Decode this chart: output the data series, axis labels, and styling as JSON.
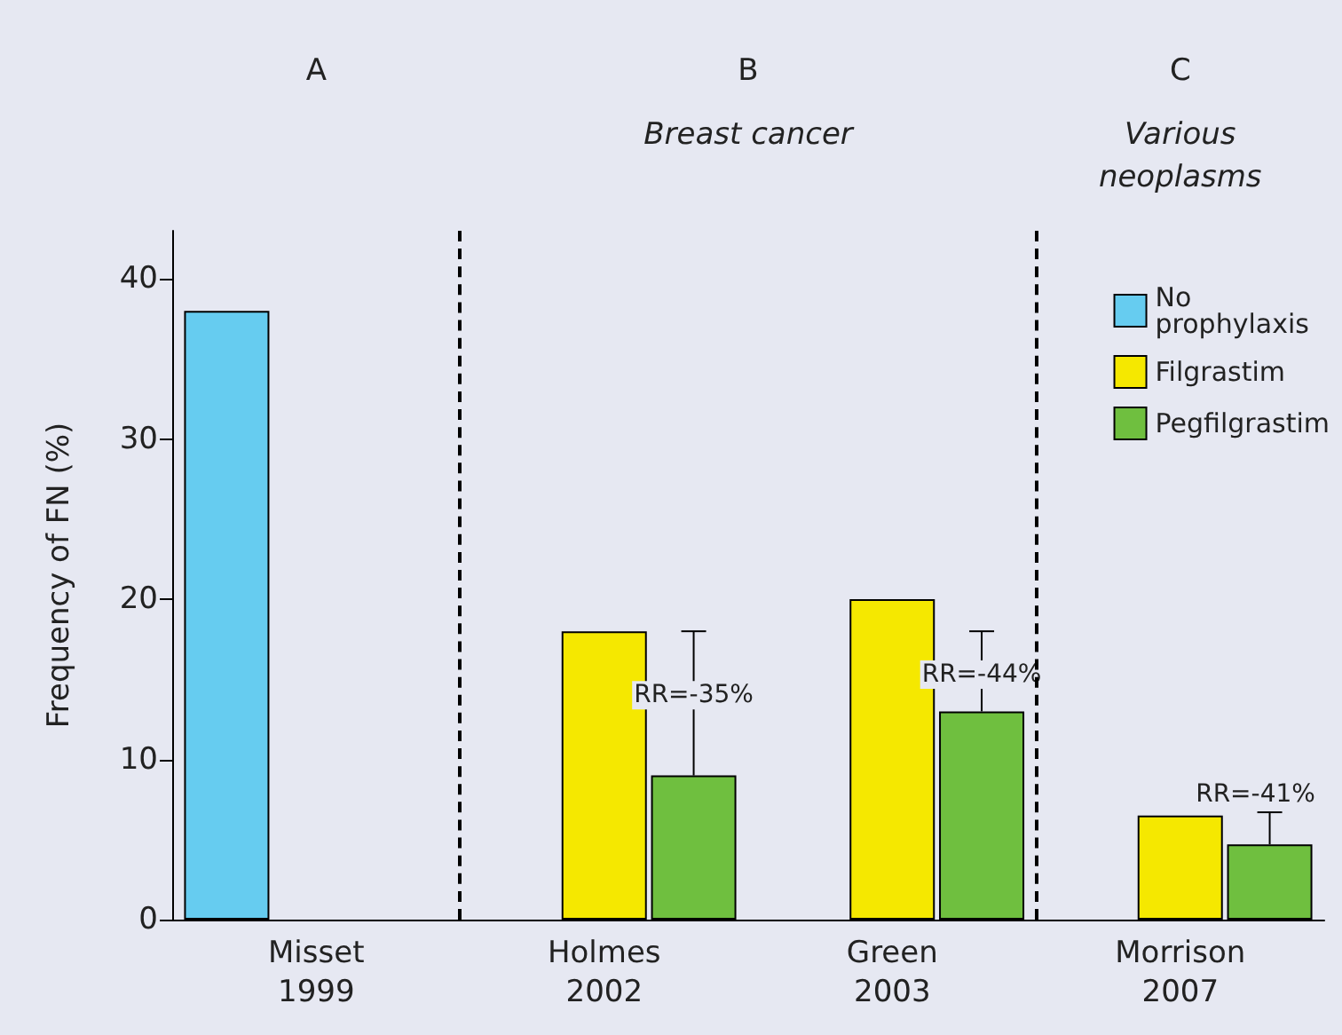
{
  "chart_data": {
    "type": "bar",
    "ylabel": "Frequency of FN (%)",
    "categories": [
      "Misset\n1999",
      "Holmes\n2002",
      "Green\n2003",
      "Morrison\n2007"
    ],
    "series": [
      {
        "name": "No prophylaxis",
        "color": "#66ccf0",
        "values": [
          38,
          null,
          null,
          null
        ]
      },
      {
        "name": "Filgrastim",
        "color": "#f5e800",
        "values": [
          null,
          18,
          20,
          6.5
        ]
      },
      {
        "name": "Pegfilgrastim",
        "color": "#6fbf3f",
        "values": [
          null,
          9,
          13,
          4.7
        ],
        "errors": [
          null,
          [
            9,
            18
          ],
          [
            13,
            18
          ],
          [
            4.7,
            6.7
          ]
        ]
      }
    ],
    "ylim": [
      0,
      43
    ],
    "yticks": [
      0,
      10,
      20,
      30,
      40
    ],
    "grid": false,
    "legend": "top right",
    "annotations": [
      "A",
      "B",
      "Breast cancer",
      "C",
      "Various\nneoplasms",
      "RR=-35%",
      "RR=-44%",
      "RR=-41%"
    ]
  }
}
